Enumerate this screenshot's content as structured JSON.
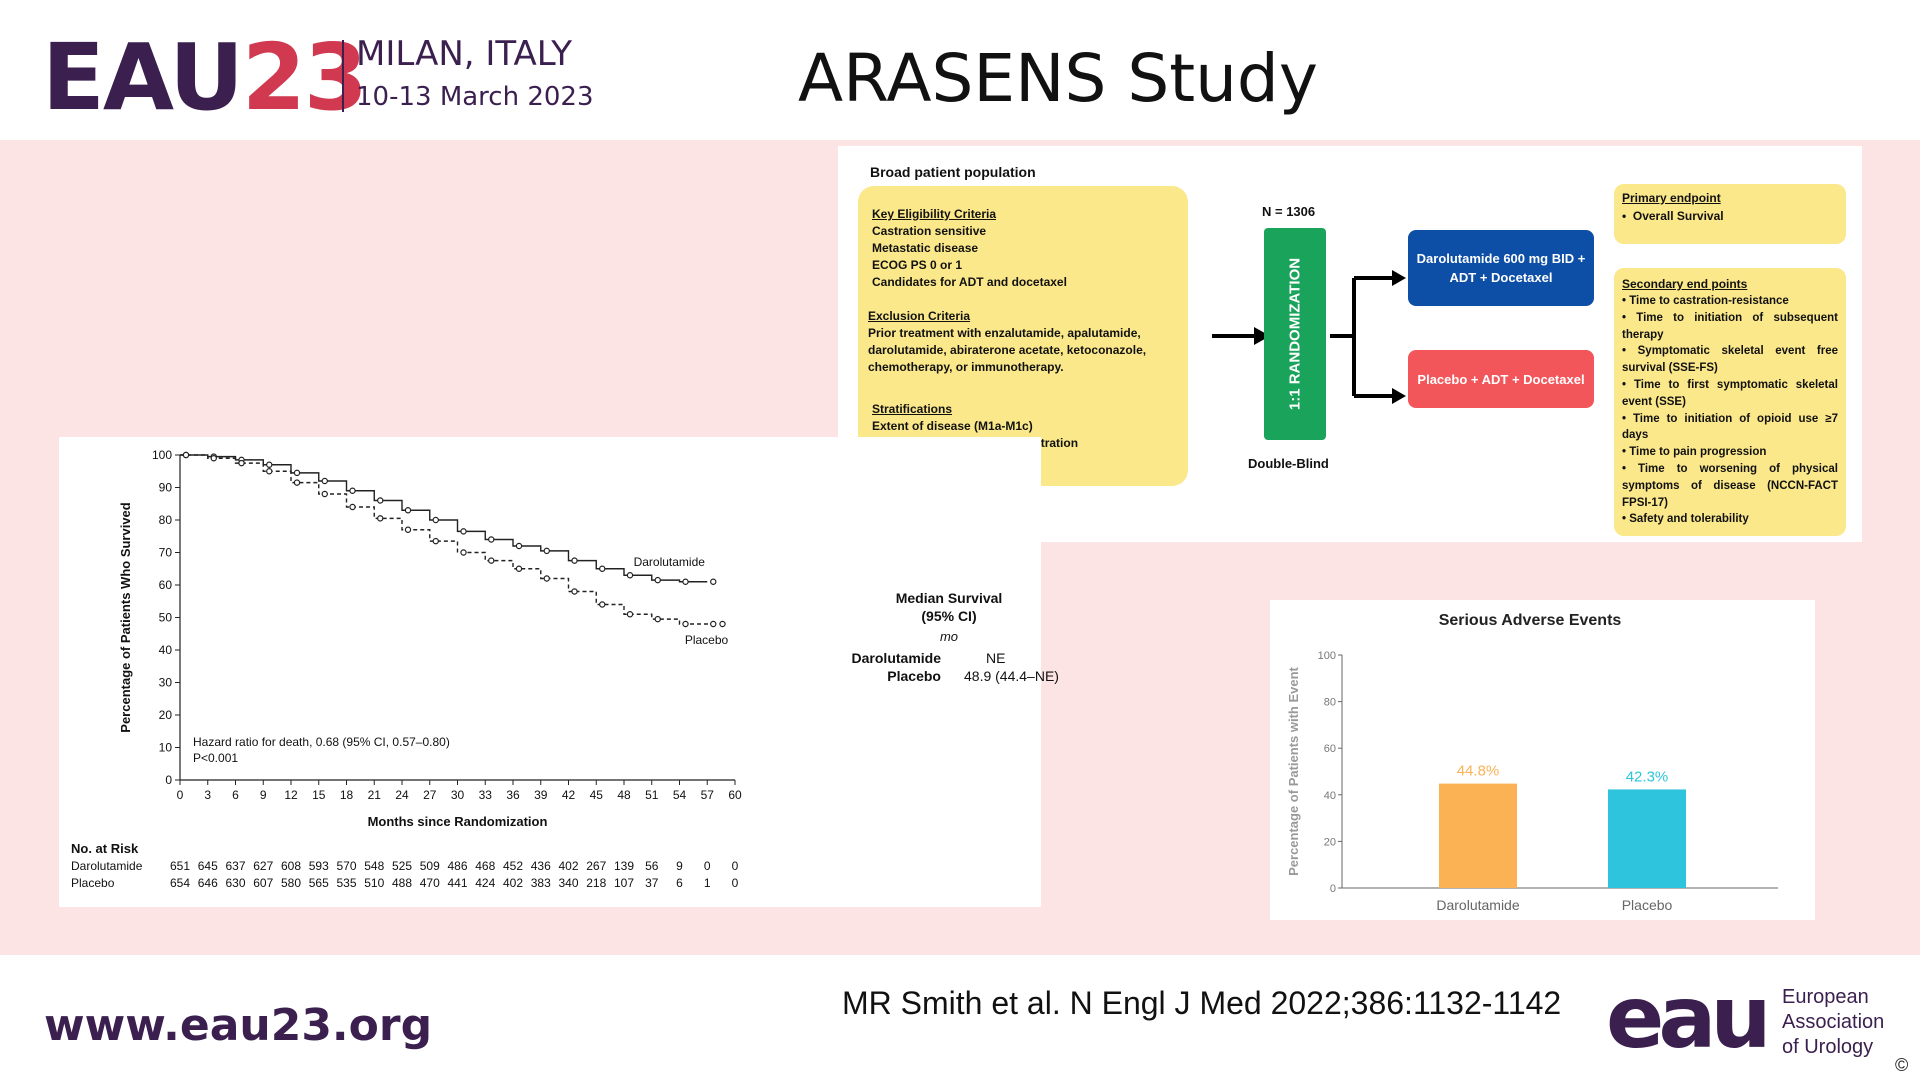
{
  "header": {
    "logo_eau": "EAU",
    "logo_year": "23",
    "city": "MILAN, ITALY",
    "dates": "10-13 March 2023",
    "title": "ARASENS Study"
  },
  "design": {
    "population_title": "Broad patient population",
    "eligibility_title": "Key Eligibility Criteria",
    "eligibility": [
      "Castration sensitive",
      "Metastatic disease",
      "ECOG PS 0 or 1",
      "Candidates for ADT and docetaxel"
    ],
    "exclusion_title": "Exclusion Criteria",
    "exclusion_lines": [
      "Prior treatment with enzalutamide, apalutamide,",
      "darolutamide, abiraterone acetate, ketoconazole,",
      "chemotherapy, or immunotherapy."
    ],
    "strat_title": "Stratifications",
    "strat": [
      "Extent of disease (M1a-M1c)",
      "Alkaline phosphatase concentration"
    ],
    "n": "N = 1306",
    "randomization": "1:1 RANDOMIZATION",
    "blind": "Double-Blind",
    "arm1": "Darolutamide 600 mg BID + ADT + Docetaxel",
    "arm2": "Placebo + ADT + Docetaxel",
    "primary_title": "Primary endpoint",
    "primary": [
      "Overall Survival"
    ],
    "secondary_title": "Secondary end points",
    "secondary": [
      "Time to castration-resistance",
      "Time to initiation of subsequent therapy",
      "Symptomatic skeletal event free survival (SSE-FS)",
      "Time to first symptomatic skeletal event (SSE)",
      "Time to initiation of opioid use ≥7 days",
      "Time to pain progression",
      "Time to worsening of physical symptoms of disease (NCCN-FACT FPSI-17)",
      "Safety and tolerability"
    ]
  },
  "km": {
    "median_title": "Median Survival",
    "median_ci": "(95% CI)",
    "median_unit": "mo",
    "median_rows": [
      {
        "label": "Darolutamide",
        "value": "NE"
      },
      {
        "label": "Placebo",
        "value": "48.9 (44.4–NE)"
      }
    ],
    "risk_title": "No. at Risk",
    "risk_rows": [
      {
        "label": "Darolutamide",
        "values": [
          "651",
          "645",
          "637",
          "627",
          "608",
          "593",
          "570",
          "548",
          "525",
          "509",
          "486",
          "468",
          "452",
          "436",
          "402",
          "267",
          "139",
          "56",
          "9",
          "0",
          "0"
        ]
      },
      {
        "label": "Placebo",
        "values": [
          "654",
          "646",
          "630",
          "607",
          "580",
          "565",
          "535",
          "510",
          "488",
          "470",
          "441",
          "424",
          "402",
          "383",
          "340",
          "218",
          "107",
          "37",
          "6",
          "1",
          "0"
        ]
      }
    ]
  },
  "chart_data": [
    {
      "type": "line",
      "title": "",
      "xlabel": "Months since Randomization",
      "ylabel": "Percentage of Patients Who Survived",
      "xlim": [
        0,
        60
      ],
      "ylim": [
        0,
        100
      ],
      "xticks": [
        0,
        3,
        6,
        9,
        12,
        15,
        18,
        21,
        24,
        27,
        30,
        33,
        36,
        39,
        42,
        45,
        48,
        51,
        54,
        57,
        60
      ],
      "yticks": [
        0,
        10,
        20,
        30,
        40,
        50,
        60,
        70,
        80,
        90,
        100
      ],
      "annotation": [
        "Hazard ratio for death, 0.68 (95% CI, 0.57–0.80)",
        "P<0.001"
      ],
      "series": [
        {
          "name": "Darolutamide",
          "x": [
            0,
            3,
            6,
            9,
            12,
            15,
            18,
            21,
            24,
            27,
            30,
            33,
            36,
            39,
            42,
            45,
            48,
            51,
            54,
            57
          ],
          "y": [
            100,
            99.5,
            98.5,
            97,
            94.5,
            92,
            89,
            86,
            83,
            80,
            76.5,
            74,
            72,
            70.5,
            67.5,
            65,
            63,
            61.5,
            61,
            61
          ]
        },
        {
          "name": "Placebo",
          "x": [
            0,
            3,
            6,
            9,
            12,
            15,
            18,
            21,
            24,
            27,
            30,
            33,
            36,
            39,
            42,
            45,
            48,
            51,
            54,
            57,
            58
          ],
          "y": [
            100,
            99,
            97.5,
            95,
            91.5,
            88,
            84,
            80.5,
            77,
            73.5,
            70,
            67.5,
            65,
            62,
            58,
            54,
            51,
            49.5,
            48,
            48,
            48
          ]
        }
      ]
    },
    {
      "type": "bar",
      "title": "Serious Adverse Events",
      "ylabel": "Percentage of Patients with Event",
      "categories": [
        "Darolutamide",
        "Placebo"
      ],
      "values": [
        44.8,
        42.3
      ],
      "value_labels": [
        "44.8%",
        "42.3%"
      ],
      "colors": [
        "#fbb254",
        "#2ec4dd"
      ],
      "ylim": [
        0,
        100
      ],
      "yticks": [
        0,
        20,
        40,
        60,
        80,
        100
      ]
    }
  ],
  "footer": {
    "url": "www.eau23.org",
    "citation": "MR Smith et al. N Engl J Med 2022;386:1132-1142",
    "org_logo": "eau",
    "org_lines": [
      "European",
      "Association",
      "of Urology"
    ],
    "copyright": "©"
  }
}
